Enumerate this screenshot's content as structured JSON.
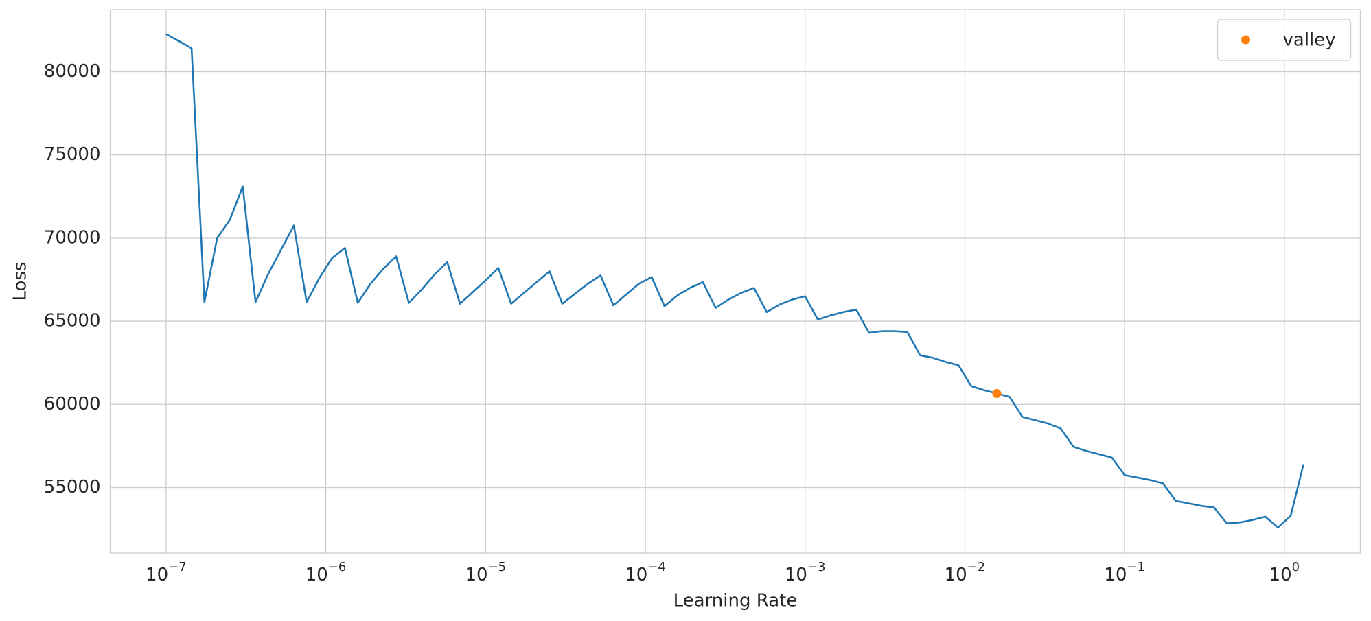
{
  "chart_data": {
    "type": "line",
    "xlabel": "Learning Rate",
    "ylabel": "Loss",
    "xscale": "log",
    "grid": true,
    "legend": "upper right",
    "xlim": [
      4.47e-08,
      2.99
    ],
    "ylim": [
      51060,
      83730
    ],
    "xticks": [
      {
        "value": 1e-07,
        "label": "10−7"
      },
      {
        "value": 1e-06,
        "label": "10−6"
      },
      {
        "value": 1e-05,
        "label": "10−5"
      },
      {
        "value": 0.0001,
        "label": "10−4"
      },
      {
        "value": 0.001,
        "label": "10−3"
      },
      {
        "value": 0.01,
        "label": "10−2"
      },
      {
        "value": 0.1,
        "label": "10−1"
      },
      {
        "value": 1,
        "label": "100"
      }
    ],
    "yticks": [
      55000,
      60000,
      65000,
      70000,
      75000,
      80000
    ],
    "series": [
      {
        "color": "#1f77b4",
        "x": [
          1e-07,
          1.202e-07,
          1.445e-07,
          1.738e-07,
          2.089e-07,
          2.512e-07,
          3.02e-07,
          3.631e-07,
          4.365e-07,
          5.248e-07,
          6.31e-07,
          7.586e-07,
          9.12e-07,
          1.096e-06,
          1.318e-06,
          1.585e-06,
          1.905e-06,
          2.291e-06,
          2.754e-06,
          3.311e-06,
          3.981e-06,
          4.786e-06,
          5.754e-06,
          6.918e-06,
          8.318e-06,
          1e-05,
          1.202e-05,
          1.445e-05,
          1.738e-05,
          2.089e-05,
          2.512e-05,
          3.02e-05,
          3.631e-05,
          4.365e-05,
          5.248e-05,
          6.31e-05,
          7.586e-05,
          9.12e-05,
          0.0001096,
          0.0001318,
          0.0001585,
          0.0001905,
          0.0002291,
          0.0002754,
          0.0003311,
          0.0003981,
          0.0004786,
          0.0005754,
          0.0006918,
          0.0008318,
          0.001,
          0.001202,
          0.001445,
          0.001738,
          0.002089,
          0.002512,
          0.00302,
          0.003631,
          0.004365,
          0.005248,
          0.00631,
          0.007586,
          0.00912,
          0.01096,
          0.01318,
          0.01585,
          0.01905,
          0.02291,
          0.02754,
          0.03311,
          0.03981,
          0.04786,
          0.05754,
          0.06918,
          0.08318,
          0.1,
          0.1202,
          0.1445,
          0.1738,
          0.2089,
          0.2512,
          0.302,
          0.3631,
          0.4365,
          0.5248,
          0.631,
          0.7586,
          0.912,
          1.096,
          1.318
        ],
        "values": [
          82260,
          81840,
          81400,
          66150,
          70000,
          71100,
          73100,
          66150,
          67850,
          69300,
          70750,
          66150,
          67600,
          68800,
          69400,
          66100,
          67250,
          68150,
          68900,
          66100,
          66900,
          67800,
          68550,
          66050,
          66750,
          67450,
          68200,
          66050,
          66700,
          67350,
          68000,
          66050,
          66650,
          67250,
          67750,
          65950,
          66600,
          67250,
          67650,
          65900,
          66550,
          67000,
          67350,
          65800,
          66300,
          66700,
          67000,
          65550,
          66000,
          66300,
          66500,
          65100,
          65350,
          65550,
          65700,
          64300,
          64400,
          64400,
          64350,
          62950,
          62800,
          62550,
          62350,
          61100,
          60850,
          60650,
          60450,
          59250,
          59050,
          58850,
          58550,
          57450,
          57200,
          57000,
          56800,
          55750,
          55600,
          55450,
          55250,
          54200,
          54050,
          53900,
          53800,
          52850,
          52900,
          53050,
          53250,
          52600,
          53300,
          56400
        ]
      },
      {
        "name": "valley",
        "color": "#ff7f0e",
        "x": [
          0.01585
        ],
        "values": [
          60650
        ]
      }
    ]
  }
}
